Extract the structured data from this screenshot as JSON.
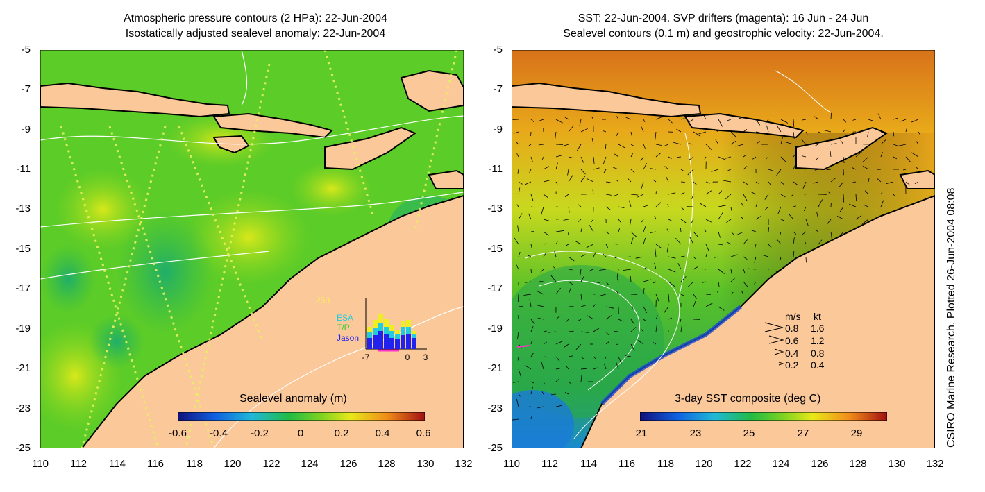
{
  "left_panel": {
    "title_line1": "Atmospheric pressure contours (2 HPa): 22-Jun-2004",
    "title_line2": "Isostatically adjusted sealevel anomaly: 22-Jun-2004",
    "colorbar_title": "Sealevel anomaly (m)",
    "colorbar_labels": [
      "-0.6",
      "-0.4",
      "-0.2",
      "0",
      "0.2",
      "0.4",
      "0.6"
    ],
    "inset": {
      "ymax_label": "250",
      "series_labels": [
        "ESA",
        "T/P",
        "Jason"
      ],
      "x_labels": [
        "-7",
        "0",
        "3"
      ],
      "colors": {
        "ESA": "#22ccdd",
        "T/P": "#33cc33",
        "Jason": "#2222ee",
        "other": "#eeee22"
      }
    }
  },
  "right_panel": {
    "title_line1": "SST: 22-Jun-2004. SVP drifters (magenta): 16 Jun - 24 Jun",
    "title_line2": "Sealevel contours (0.1 m) and geostrophic velocity: 22-Jun-2004.",
    "colorbar_title": "3-day SST composite (deg C)",
    "colorbar_labels": [
      "21",
      "23",
      "25",
      "27",
      "29"
    ],
    "velocity_legend": {
      "header_ms": "m/s",
      "header_kt": "kt",
      "rows": [
        {
          "ms": "0.8",
          "kt": "1.6"
        },
        {
          "ms": "0.6",
          "kt": "1.2"
        },
        {
          "ms": "0.4",
          "kt": "0.8"
        },
        {
          "ms": "0.2",
          "kt": "0.4"
        }
      ]
    }
  },
  "axes": {
    "y_ticks": [
      "-5",
      "-7",
      "-9",
      "-11",
      "-13",
      "-15",
      "-17",
      "-19",
      "-21",
      "-23",
      "-25"
    ],
    "x_ticks": [
      "110",
      "112",
      "114",
      "116",
      "118",
      "120",
      "122",
      "124",
      "126",
      "128",
      "130",
      "132"
    ]
  },
  "side_note": "CSIRO Marine Research. Plotted 26-Jun-2004 08:08",
  "colors": {
    "land": "#fbc89a",
    "ocean_green": "#44cc22",
    "sst_warm": "#dd7711"
  }
}
